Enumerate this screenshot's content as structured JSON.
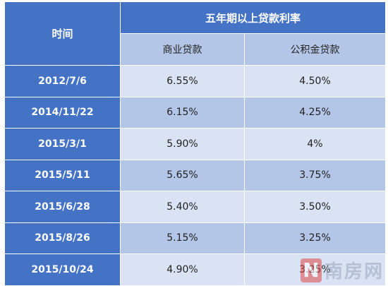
{
  "table": {
    "header_time": "时间",
    "header_group": "五年期以上贷款利率",
    "sub_headers": [
      "商业贷款",
      "公积金贷款"
    ],
    "rows": [
      {
        "date": "2012/7/6",
        "commercial": "6.55%",
        "provident": "4.50%"
      },
      {
        "date": "2014/11/22",
        "commercial": "6.15%",
        "provident": "4.25%"
      },
      {
        "date": "2015/3/1",
        "commercial": "5.90%",
        "provident": "4%"
      },
      {
        "date": "2015/5/11",
        "commercial": "5.65%",
        "provident": "3.75%"
      },
      {
        "date": "2015/6/28",
        "commercial": "5.40%",
        "provident": "3.50%"
      },
      {
        "date": "2015/8/26",
        "commercial": "5.15%",
        "provident": "3.25%"
      },
      {
        "date": "2015/10/24",
        "commercial": "4.90%",
        "provident": "3.25%"
      }
    ]
  },
  "watermark": {
    "logo_letter": "N",
    "text": "南房网"
  },
  "colors": {
    "header_blue": "#4472c4",
    "light_band": "#dae3f3",
    "mid_band": "#b4c6e7"
  }
}
